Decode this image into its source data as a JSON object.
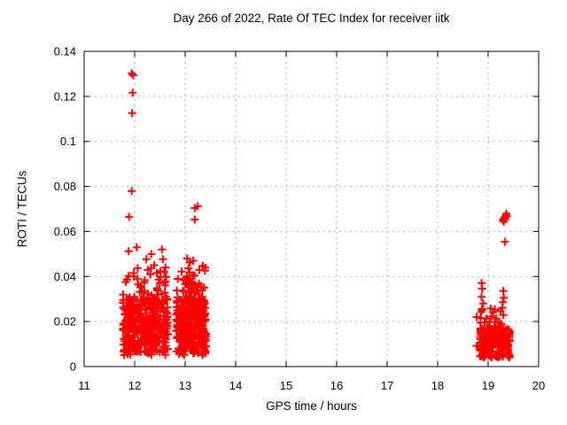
{
  "page": {
    "background": "#ffffff"
  },
  "chart_data": {
    "type": "scatter",
    "title": "Day 266 of 2022, Rate Of TEC Index for receiver iitk",
    "xlabel": "GPS time / hours",
    "ylabel": "ROTI / TECUs",
    "xlim": [
      11,
      20
    ],
    "ylim": [
      0,
      0.14
    ],
    "xticks": [
      11,
      12,
      13,
      14,
      15,
      16,
      17,
      18,
      19,
      20
    ],
    "xtick_labels": [
      "11",
      "12",
      "13",
      "14",
      "15",
      "16",
      "17",
      "18",
      "19",
      "20"
    ],
    "yticks": [
      0,
      0.02,
      0.04,
      0.06,
      0.08,
      0.1,
      0.12,
      0.14
    ],
    "ytick_labels": [
      "0",
      "0.02",
      "0.04",
      "0.06",
      "0.08",
      "0.1",
      "0.12",
      "0.14"
    ],
    "grid": {
      "show": true,
      "color": "#aaaaaa",
      "style": "dashed",
      "dash": [
        2,
        4
      ]
    },
    "axis_color": "#000000",
    "legend": "none",
    "marker": {
      "shape": "plus",
      "color": "#ff0000",
      "size": 9,
      "stroke_width": 2
    },
    "seed": 20220926,
    "series": [
      {
        "name": "ROTI",
        "color": "#ff0000",
        "outlier_points": [
          [
            11.94,
            0.1302
          ],
          [
            11.97,
            0.1294
          ],
          [
            11.96,
            0.1216
          ],
          [
            11.95,
            0.1126
          ],
          [
            11.94,
            0.0779
          ],
          [
            11.89,
            0.0665
          ],
          [
            11.88,
            0.0512
          ],
          [
            11.88,
            0.0402
          ],
          [
            12.04,
            0.053
          ],
          [
            12.06,
            0.0437
          ],
          [
            12.23,
            0.0477
          ],
          [
            12.26,
            0.0429
          ],
          [
            12.33,
            0.05
          ],
          [
            12.54,
            0.052
          ],
          [
            12.56,
            0.0477
          ],
          [
            12.61,
            0.044
          ],
          [
            13.19,
            0.0704
          ],
          [
            13.25,
            0.0712
          ],
          [
            13.19,
            0.0653
          ],
          [
            13.04,
            0.048
          ],
          [
            13.09,
            0.0462
          ],
          [
            13.16,
            0.047
          ],
          [
            13.28,
            0.0429
          ],
          [
            13.35,
            0.0447
          ],
          [
            13.09,
            0.0417
          ],
          [
            18.77,
            0.022
          ],
          [
            18.77,
            0.0092
          ],
          [
            18.87,
            0.0371
          ],
          [
            18.88,
            0.0346
          ],
          [
            18.87,
            0.031
          ],
          [
            18.9,
            0.028
          ],
          [
            18.88,
            0.0251
          ],
          [
            18.85,
            0.0216
          ],
          [
            18.93,
            0.0196
          ],
          [
            19.3,
            0.0336
          ],
          [
            19.31,
            0.0306
          ],
          [
            19.29,
            0.0286
          ],
          [
            19.28,
            0.0261
          ],
          [
            19.1,
            0.0242
          ],
          [
            19.16,
            0.0214
          ],
          [
            19.21,
            0.0196
          ],
          [
            19.06,
            0.0222
          ],
          [
            19.29,
            0.065
          ],
          [
            19.31,
            0.0657
          ],
          [
            19.33,
            0.0664
          ],
          [
            19.35,
            0.0671
          ],
          [
            19.36,
            0.0679
          ],
          [
            19.31,
            0.0644
          ],
          [
            19.37,
            0.0668
          ],
          [
            19.34,
            0.0655
          ],
          [
            19.33,
            0.0554
          ]
        ],
        "dense_clusters": [
          {
            "label": "burst-12h",
            "type": "blob",
            "count": 400,
            "x_range": [
              11.76,
              12.66
            ],
            "y_core": [
              0.005,
              0.03
            ],
            "core_prob": 0.87,
            "y_fringe": [
              0.03,
              0.046
            ]
          },
          {
            "label": "burst-13h",
            "type": "blob",
            "count": 330,
            "x_range": [
              12.82,
              13.42
            ],
            "y_core": [
              0.005,
              0.03
            ],
            "core_prob": 0.88,
            "y_fringe": [
              0.03,
              0.044
            ]
          },
          {
            "label": "streak-13h",
            "type": "streak",
            "count": 28,
            "x_range": [
              12.99,
              13.19
            ],
            "y_start": 0.039,
            "y_slope": -0.022,
            "y_jitter": 0.004
          },
          {
            "label": "burst-19h",
            "type": "blob",
            "count": 230,
            "x_range": [
              18.83,
              19.43
            ],
            "y_core": [
              0.004,
              0.017
            ],
            "core_prob": 0.92,
            "y_fringe": [
              0.017,
              0.026
            ]
          }
        ]
      }
    ]
  }
}
